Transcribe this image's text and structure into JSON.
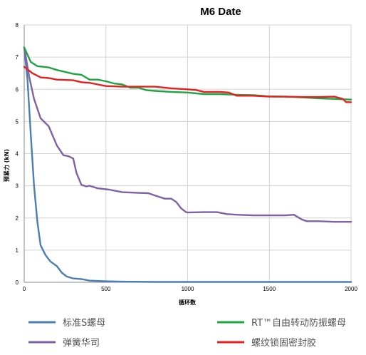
{
  "chart_data": {
    "type": "line",
    "title": "M6 Date",
    "xlabel": "循环数",
    "ylabel": "预紧力 (kN)",
    "xlim": [
      0,
      2000
    ],
    "ylim": [
      0,
      8
    ],
    "x_ticks": [
      0,
      500,
      1000,
      1500,
      2000
    ],
    "y_ticks": [
      0,
      1,
      2,
      3,
      4,
      5,
      6,
      7,
      8
    ],
    "grid": true,
    "legend_position": "bottom",
    "series": [
      {
        "name": "标准S螺母",
        "color": "#4a7eb5",
        "points": [
          [
            0,
            7.3
          ],
          [
            20,
            6.3
          ],
          [
            40,
            4.6
          ],
          [
            60,
            3.0
          ],
          [
            80,
            1.9
          ],
          [
            100,
            1.15
          ],
          [
            130,
            0.85
          ],
          [
            160,
            0.65
          ],
          [
            200,
            0.5
          ],
          [
            230,
            0.3
          ],
          [
            260,
            0.18
          ],
          [
            300,
            0.12
          ],
          [
            350,
            0.1
          ],
          [
            400,
            0.05
          ],
          [
            500,
            0.03
          ],
          [
            600,
            0.02
          ],
          [
            800,
            0.01
          ],
          [
            1000,
            0.01
          ],
          [
            1500,
            0.01
          ],
          [
            2000,
            0.01
          ]
        ]
      },
      {
        "name": "弹簧华司",
        "color": "#7e62a5",
        "points": [
          [
            0,
            7.3
          ],
          [
            30,
            6.4
          ],
          [
            60,
            5.7
          ],
          [
            100,
            5.1
          ],
          [
            150,
            4.85
          ],
          [
            200,
            4.25
          ],
          [
            240,
            3.95
          ],
          [
            270,
            3.92
          ],
          [
            300,
            3.85
          ],
          [
            320,
            3.4
          ],
          [
            350,
            3.03
          ],
          [
            380,
            2.98
          ],
          [
            400,
            3.0
          ],
          [
            450,
            2.92
          ],
          [
            520,
            2.88
          ],
          [
            600,
            2.8
          ],
          [
            700,
            2.78
          ],
          [
            760,
            2.77
          ],
          [
            800,
            2.7
          ],
          [
            860,
            2.6
          ],
          [
            900,
            2.6
          ],
          [
            930,
            2.5
          ],
          [
            960,
            2.3
          ],
          [
            990,
            2.18
          ],
          [
            1000,
            2.17
          ],
          [
            1100,
            2.18
          ],
          [
            1180,
            2.18
          ],
          [
            1240,
            2.12
          ],
          [
            1300,
            2.1
          ],
          [
            1400,
            2.08
          ],
          [
            1500,
            2.08
          ],
          [
            1600,
            2.08
          ],
          [
            1650,
            2.1
          ],
          [
            1700,
            1.95
          ],
          [
            1730,
            1.9
          ],
          [
            1800,
            1.9
          ],
          [
            1900,
            1.88
          ],
          [
            2000,
            1.88
          ]
        ]
      },
      {
        "name": "RT™自由转动防振螺母",
        "color": "#1ea542",
        "points": [
          [
            0,
            7.3
          ],
          [
            40,
            6.85
          ],
          [
            80,
            6.72
          ],
          [
            150,
            6.68
          ],
          [
            200,
            6.6
          ],
          [
            300,
            6.48
          ],
          [
            350,
            6.45
          ],
          [
            400,
            6.3
          ],
          [
            450,
            6.3
          ],
          [
            500,
            6.25
          ],
          [
            550,
            6.18
          ],
          [
            600,
            6.15
          ],
          [
            650,
            6.05
          ],
          [
            700,
            6.05
          ],
          [
            750,
            5.97
          ],
          [
            800,
            5.95
          ],
          [
            900,
            5.92
          ],
          [
            1000,
            5.9
          ],
          [
            1100,
            5.85
          ],
          [
            1200,
            5.85
          ],
          [
            1300,
            5.83
          ],
          [
            1400,
            5.82
          ],
          [
            1500,
            5.78
          ],
          [
            1600,
            5.77
          ],
          [
            1700,
            5.75
          ],
          [
            1800,
            5.72
          ],
          [
            1900,
            5.7
          ],
          [
            2000,
            5.68
          ]
        ]
      },
      {
        "name": "螺纹锁固密封胶",
        "color": "#e62020",
        "points": [
          [
            0,
            6.7
          ],
          [
            50,
            6.5
          ],
          [
            100,
            6.37
          ],
          [
            150,
            6.35
          ],
          [
            200,
            6.3
          ],
          [
            300,
            6.28
          ],
          [
            350,
            6.22
          ],
          [
            400,
            6.2
          ],
          [
            450,
            6.15
          ],
          [
            500,
            6.1
          ],
          [
            600,
            6.08
          ],
          [
            700,
            6.08
          ],
          [
            800,
            6.08
          ],
          [
            900,
            6.03
          ],
          [
            1000,
            6.0
          ],
          [
            1050,
            5.98
          ],
          [
            1100,
            5.92
          ],
          [
            1200,
            5.92
          ],
          [
            1250,
            5.9
          ],
          [
            1300,
            5.8
          ],
          [
            1400,
            5.8
          ],
          [
            1500,
            5.77
          ],
          [
            1600,
            5.77
          ],
          [
            1700,
            5.76
          ],
          [
            1800,
            5.76
          ],
          [
            1900,
            5.77
          ],
          [
            1950,
            5.7
          ],
          [
            1970,
            5.6
          ],
          [
            2000,
            5.6
          ]
        ]
      }
    ]
  }
}
